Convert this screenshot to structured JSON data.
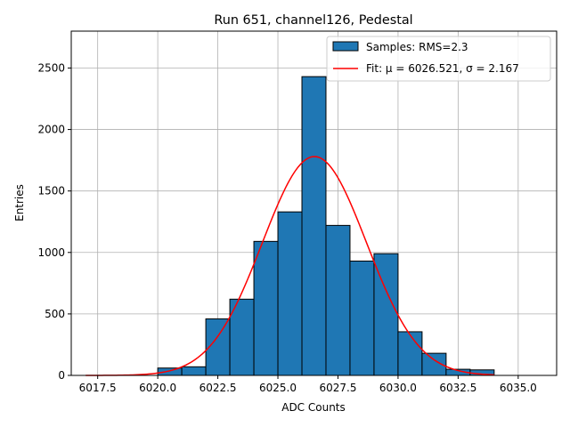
{
  "chart_data": {
    "type": "bar",
    "title": "Run 651, channel126, Pedestal",
    "xlabel": "ADC Counts",
    "ylabel": "Entries",
    "xlim": [
      6016.4,
      6036.6
    ],
    "ylim": [
      0,
      2800
    ],
    "xticks": [
      6017.5,
      6020.0,
      6022.5,
      6025.0,
      6027.5,
      6030.0,
      6032.5,
      6035.0
    ],
    "xtick_labels": [
      "6017.5",
      "6020.0",
      "6022.5",
      "6025.0",
      "6027.5",
      "6030.0",
      "6032.5",
      "6035.0"
    ],
    "yticks": [
      0,
      500,
      1000,
      1500,
      2000,
      2500
    ],
    "ytick_labels": [
      "0",
      "500",
      "1000",
      "1500",
      "2000",
      "2500"
    ],
    "grid": true,
    "legend_position": "top-right",
    "series": [
      {
        "name": "Samples: RMS=2.3",
        "kind": "histogram",
        "color": "#1f77b4",
        "edgecolor": "#000000",
        "bins": [
          {
            "left": 6020.0,
            "right": 6021.0,
            "value": 60
          },
          {
            "left": 6021.0,
            "right": 6022.0,
            "value": 70
          },
          {
            "left": 6022.0,
            "right": 6023.0,
            "value": 460
          },
          {
            "left": 6023.0,
            "right": 6024.0,
            "value": 620
          },
          {
            "left": 6024.0,
            "right": 6025.0,
            "value": 1090
          },
          {
            "left": 6025.0,
            "right": 6026.0,
            "value": 1330
          },
          {
            "left": 6026.0,
            "right": 6027.0,
            "value": 2430
          },
          {
            "left": 6027.0,
            "right": 6028.0,
            "value": 1220
          },
          {
            "left": 6028.0,
            "right": 6029.0,
            "value": 930
          },
          {
            "left": 6029.0,
            "right": 6030.0,
            "value": 990
          },
          {
            "left": 6030.0,
            "right": 6031.0,
            "value": 355
          },
          {
            "left": 6031.0,
            "right": 6032.0,
            "value": 180
          },
          {
            "left": 6032.0,
            "right": 6033.0,
            "value": 50
          },
          {
            "left": 6033.0,
            "right": 6034.0,
            "value": 45
          }
        ]
      },
      {
        "name": "Fit: μ = 6026.521, σ = 2.167",
        "kind": "gaussian",
        "color": "#ff0000",
        "amplitude": 1780,
        "mu": 6026.521,
        "sigma": 2.167,
        "x_range": [
          6017.0,
          6034.0
        ]
      }
    ]
  }
}
